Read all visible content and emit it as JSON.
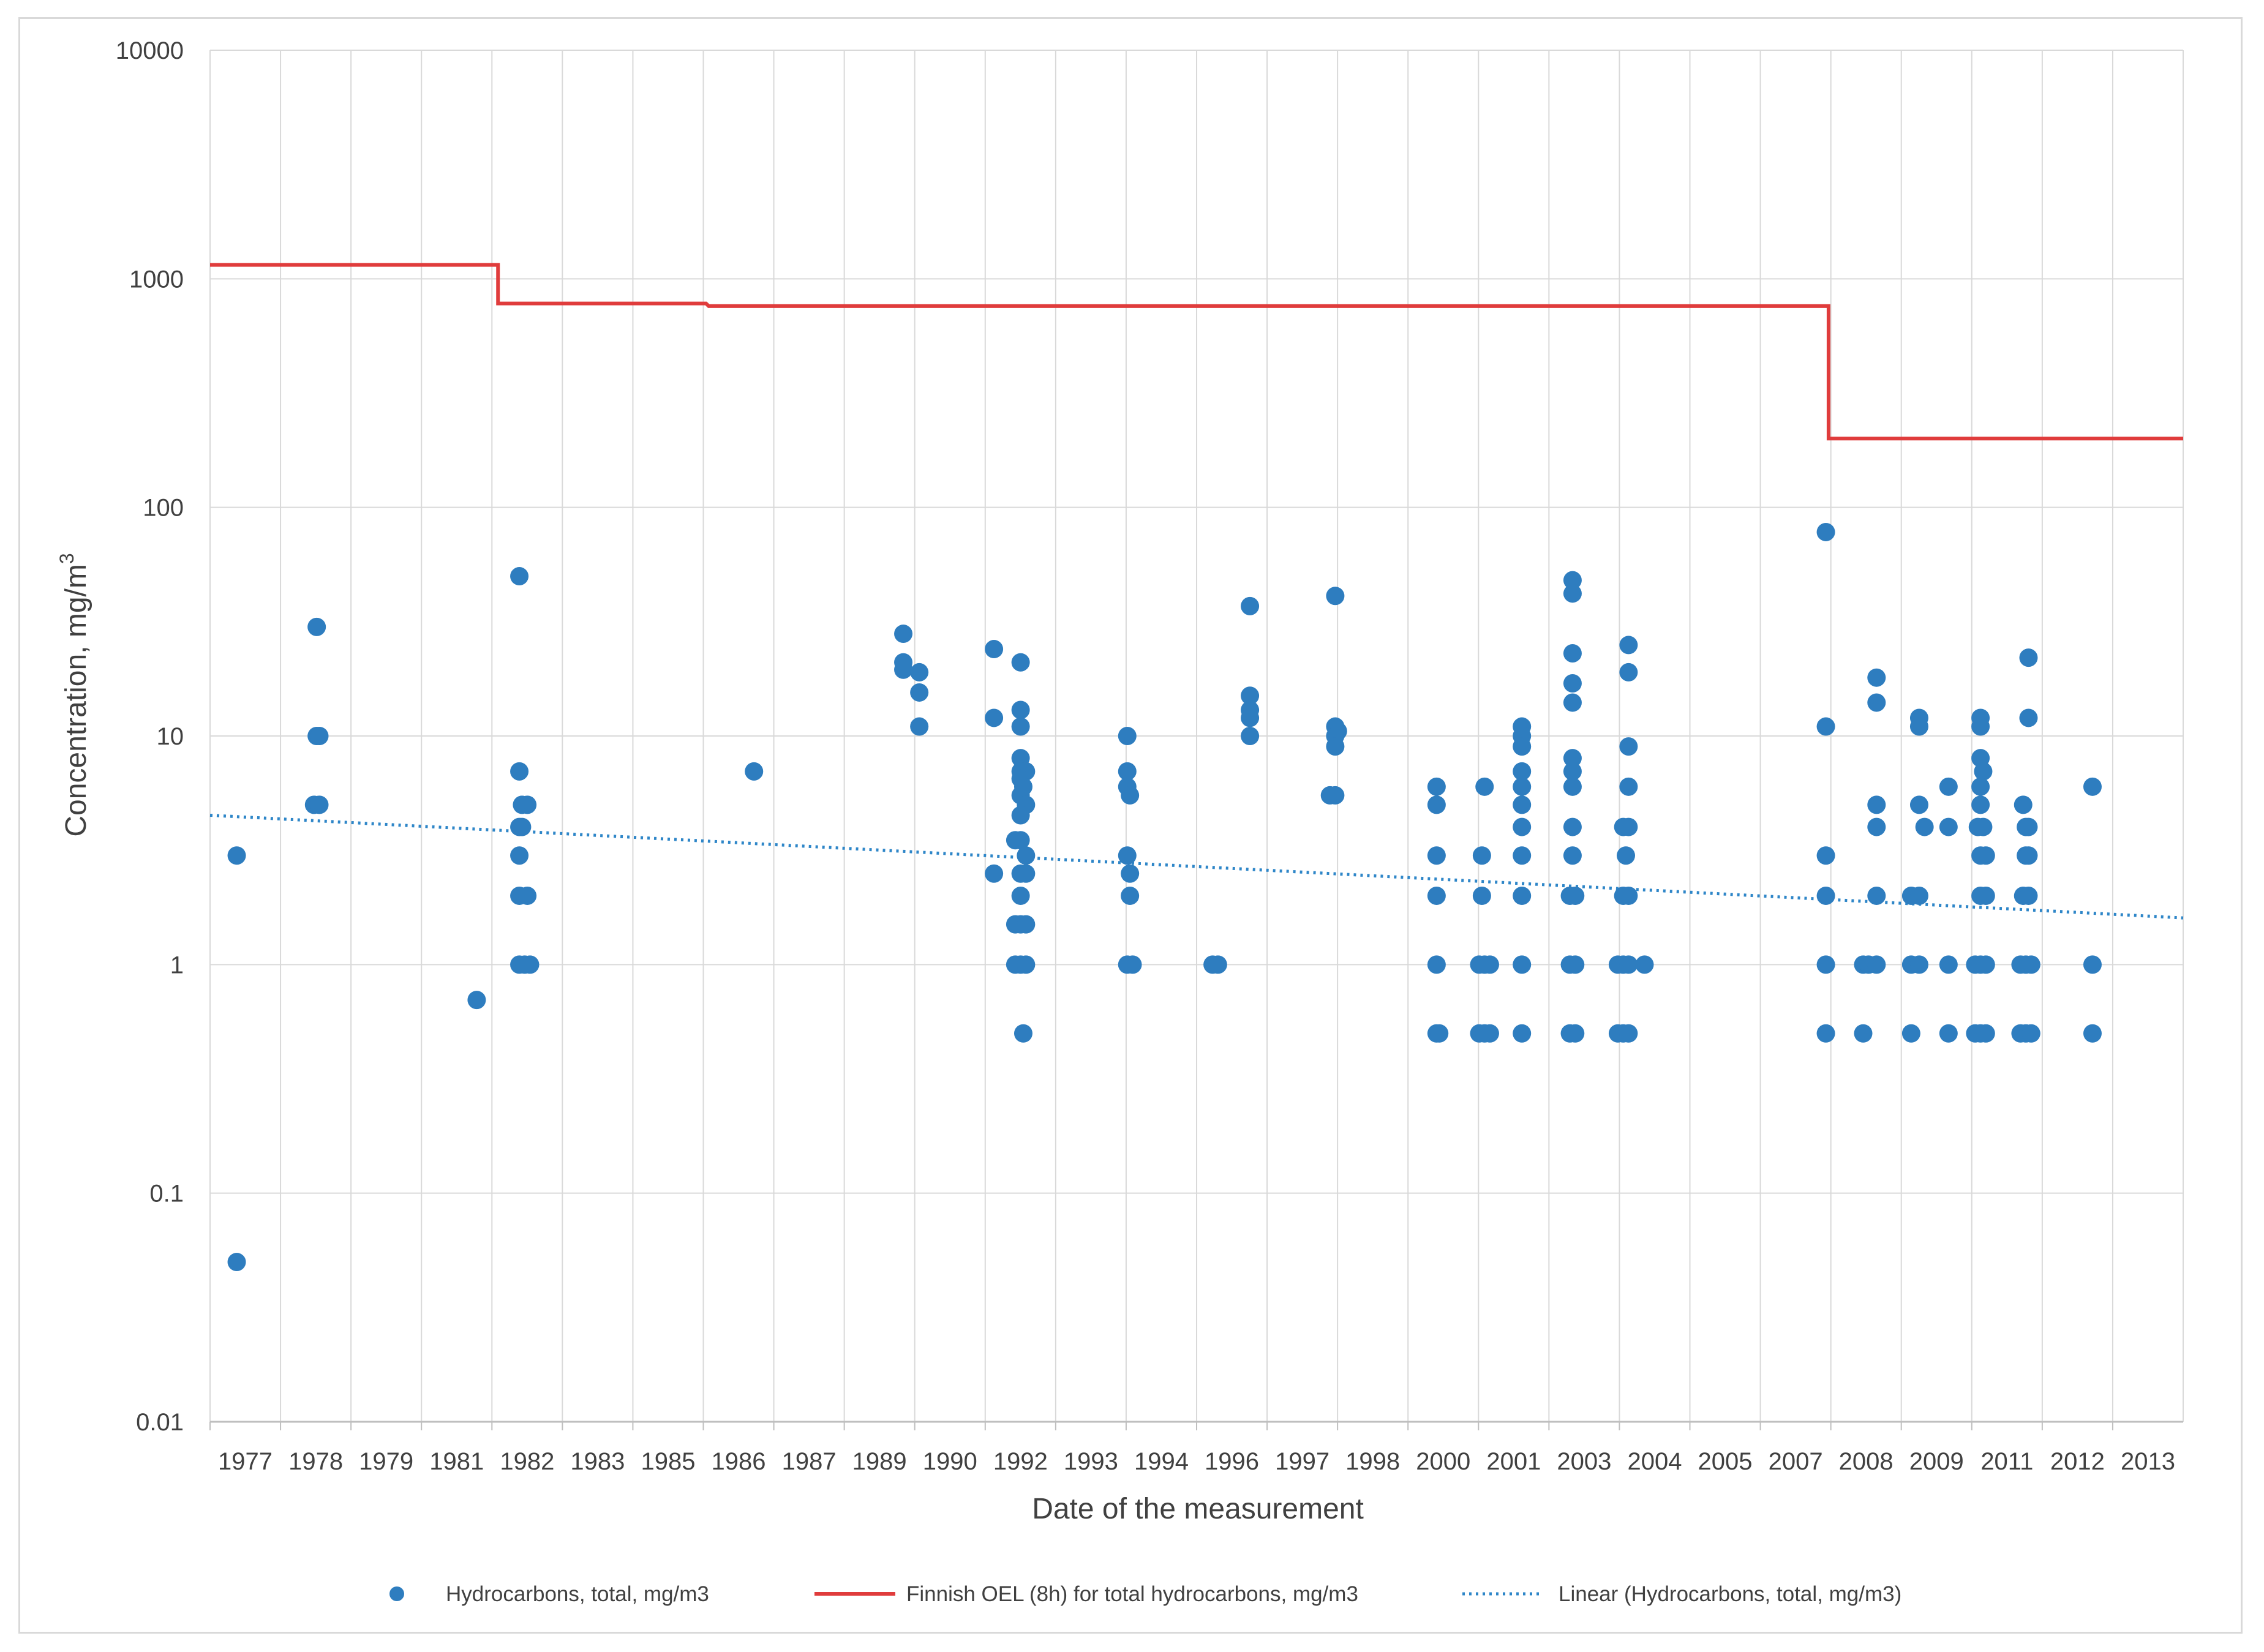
{
  "chart_data": {
    "type": "scatter",
    "title": "",
    "xlabel": "Date of the measurement",
    "ylabel": "Concentration, mg/m",
    "ylabel_superscript": "3",
    "yscale": "log",
    "ylim": [
      0.01,
      10000
    ],
    "xlim": [
      1977,
      2014
    ],
    "yticks": [
      "10000",
      "1000",
      "100",
      "10",
      "1",
      "0.1",
      "0.01"
    ],
    "xtick_labels": [
      "1977",
      "1978",
      "1979",
      "1981",
      "1982",
      "1983",
      "1985",
      "1986",
      "1987",
      "1989",
      "1990",
      "1992",
      "1993",
      "1994",
      "1996",
      "1997",
      "1998",
      "2000",
      "2001",
      "2003",
      "2004",
      "2005",
      "2007",
      "2008",
      "2009",
      "2011",
      "2012",
      "2013"
    ],
    "grid": true,
    "legend_position": "bottom",
    "colors": {
      "scatter": "#2e7dbf",
      "oel": "#e03c3c",
      "trend": "#2e86c8",
      "grid": "#d9d9d9",
      "axis": "#bfbfbf"
    },
    "series": [
      {
        "name": "Hydrocarbons, total, mg/m3",
        "kind": "scatter",
        "points": [
          [
            1977.5,
            3
          ],
          [
            1977.5,
            0.05
          ],
          [
            1979.0,
            30
          ],
          [
            1979.0,
            10
          ],
          [
            1979.05,
            10
          ],
          [
            1978.95,
            5
          ],
          [
            1979.05,
            5
          ],
          [
            1982.0,
            0.7
          ],
          [
            1982.8,
            50
          ],
          [
            1982.8,
            7
          ],
          [
            1982.85,
            5
          ],
          [
            1982.95,
            5
          ],
          [
            1982.8,
            4
          ],
          [
            1982.85,
            4
          ],
          [
            1982.8,
            3
          ],
          [
            1982.8,
            2
          ],
          [
            1982.95,
            2
          ],
          [
            1982.8,
            1
          ],
          [
            1982.9,
            1
          ],
          [
            1983.0,
            1
          ],
          [
            1987.2,
            7
          ],
          [
            1990.0,
            28
          ],
          [
            1990.0,
            21
          ],
          [
            1990.0,
            19.5
          ],
          [
            1990.3,
            19
          ],
          [
            1990.3,
            15.5
          ],
          [
            1990.3,
            11
          ],
          [
            1991.7,
            24
          ],
          [
            1991.7,
            12
          ],
          [
            1991.7,
            2.5
          ],
          [
            1992.2,
            21
          ],
          [
            1992.2,
            13
          ],
          [
            1992.2,
            11
          ],
          [
            1992.2,
            8
          ],
          [
            1992.2,
            7
          ],
          [
            1992.3,
            7
          ],
          [
            1992.2,
            6.5
          ],
          [
            1992.25,
            6
          ],
          [
            1992.2,
            5.5
          ],
          [
            1992.3,
            5
          ],
          [
            1992.2,
            4.5
          ],
          [
            1992.1,
            3.5
          ],
          [
            1992.2,
            3.5
          ],
          [
            1992.3,
            3
          ],
          [
            1992.2,
            2.5
          ],
          [
            1992.3,
            2.5
          ],
          [
            1992.2,
            2
          ],
          [
            1992.1,
            1.5
          ],
          [
            1992.2,
            1.5
          ],
          [
            1992.3,
            1.5
          ],
          [
            1992.1,
            1
          ],
          [
            1992.2,
            1
          ],
          [
            1992.3,
            1
          ],
          [
            1992.25,
            0.5
          ],
          [
            1994.2,
            10
          ],
          [
            1994.2,
            7
          ],
          [
            1994.2,
            6
          ],
          [
            1994.25,
            5.5
          ],
          [
            1994.2,
            3
          ],
          [
            1994.25,
            2.5
          ],
          [
            1994.25,
            2
          ],
          [
            1994.2,
            1
          ],
          [
            1994.3,
            1
          ],
          [
            1995.8,
            1
          ],
          [
            1995.9,
            1
          ],
          [
            1996.5,
            37
          ],
          [
            1996.5,
            15
          ],
          [
            1996.5,
            13
          ],
          [
            1996.5,
            12
          ],
          [
            1996.5,
            10
          ],
          [
            1998.1,
            41
          ],
          [
            1998.1,
            11
          ],
          [
            1998.15,
            10.5
          ],
          [
            1998.1,
            10
          ],
          [
            1998.1,
            9
          ],
          [
            1998.0,
            5.5
          ],
          [
            1998.1,
            5.5
          ],
          [
            2000.0,
            6
          ],
          [
            2000.0,
            5
          ],
          [
            2000.0,
            3
          ],
          [
            2000.0,
            2
          ],
          [
            2000.0,
            1
          ],
          [
            2000.0,
            0.5
          ],
          [
            2000.05,
            0.5
          ],
          [
            2000.9,
            6
          ],
          [
            2000.85,
            3
          ],
          [
            2000.85,
            2
          ],
          [
            2000.8,
            1
          ],
          [
            2000.9,
            1
          ],
          [
            2001.0,
            1
          ],
          [
            2000.8,
            0.5
          ],
          [
            2000.9,
            0.5
          ],
          [
            2001.0,
            0.5
          ],
          [
            2001.6,
            11
          ],
          [
            2001.6,
            10
          ],
          [
            2001.6,
            9
          ],
          [
            2001.6,
            7
          ],
          [
            2001.6,
            6
          ],
          [
            2001.6,
            5
          ],
          [
            2001.6,
            4
          ],
          [
            2001.6,
            3
          ],
          [
            2001.6,
            2
          ],
          [
            2001.6,
            1
          ],
          [
            2001.6,
            0.5
          ],
          [
            2002.55,
            48
          ],
          [
            2002.55,
            42
          ],
          [
            2002.55,
            23
          ],
          [
            2002.55,
            17
          ],
          [
            2002.55,
            14
          ],
          [
            2002.55,
            8
          ],
          [
            2002.55,
            7
          ],
          [
            2002.55,
            6
          ],
          [
            2002.55,
            4
          ],
          [
            2002.55,
            3
          ],
          [
            2002.5,
            2
          ],
          [
            2002.6,
            2
          ],
          [
            2002.5,
            1
          ],
          [
            2002.6,
            1
          ],
          [
            2002.5,
            0.5
          ],
          [
            2002.6,
            0.5
          ],
          [
            2003.6,
            25
          ],
          [
            2003.6,
            19
          ],
          [
            2003.6,
            9
          ],
          [
            2003.6,
            6
          ],
          [
            2003.5,
            4
          ],
          [
            2003.6,
            4
          ],
          [
            2003.55,
            3
          ],
          [
            2003.5,
            2
          ],
          [
            2003.6,
            2
          ],
          [
            2003.4,
            1
          ],
          [
            2003.5,
            1
          ],
          [
            2003.6,
            1
          ],
          [
            2003.9,
            1
          ],
          [
            2003.4,
            0.5
          ],
          [
            2003.5,
            0.5
          ],
          [
            2003.6,
            0.5
          ],
          [
            2007.3,
            78
          ],
          [
            2007.3,
            11
          ],
          [
            2007.3,
            3
          ],
          [
            2007.3,
            2
          ],
          [
            2007.3,
            1
          ],
          [
            2007.3,
            0.5
          ],
          [
            2008.0,
            1
          ],
          [
            2008.1,
            1
          ],
          [
            2008.0,
            0.5
          ],
          [
            2008.25,
            18
          ],
          [
            2008.25,
            14
          ],
          [
            2008.25,
            5
          ],
          [
            2008.25,
            4
          ],
          [
            2008.25,
            2
          ],
          [
            2008.25,
            1
          ],
          [
            2008.9,
            2
          ],
          [
            2008.9,
            1
          ],
          [
            2008.9,
            0.5
          ],
          [
            2009.05,
            12
          ],
          [
            2009.05,
            11
          ],
          [
            2009.05,
            5
          ],
          [
            2009.05,
            2
          ],
          [
            2009.05,
            1
          ],
          [
            2009.15,
            4
          ],
          [
            2009.6,
            6
          ],
          [
            2009.6,
            4
          ],
          [
            2009.6,
            1
          ],
          [
            2009.6,
            0.5
          ],
          [
            2010.2,
            12
          ],
          [
            2010.2,
            11
          ],
          [
            2010.2,
            8
          ],
          [
            2010.25,
            7
          ],
          [
            2010.2,
            6
          ],
          [
            2010.2,
            5
          ],
          [
            2010.15,
            4
          ],
          [
            2010.25,
            4
          ],
          [
            2010.2,
            3
          ],
          [
            2010.3,
            3
          ],
          [
            2010.2,
            2
          ],
          [
            2010.3,
            2
          ],
          [
            2010.1,
            1
          ],
          [
            2010.2,
            1
          ],
          [
            2010.3,
            1
          ],
          [
            2010.1,
            0.5
          ],
          [
            2010.2,
            0.5
          ],
          [
            2010.3,
            0.5
          ],
          [
            2011.1,
            22
          ],
          [
            2011.1,
            12
          ],
          [
            2011.0,
            5
          ],
          [
            2011.05,
            4
          ],
          [
            2011.1,
            4
          ],
          [
            2011.05,
            3
          ],
          [
            2011.1,
            3
          ],
          [
            2011.0,
            2
          ],
          [
            2011.1,
            2
          ],
          [
            2010.95,
            1
          ],
          [
            2011.05,
            1
          ],
          [
            2011.15,
            1
          ],
          [
            2010.95,
            0.5
          ],
          [
            2011.05,
            0.5
          ],
          [
            2011.15,
            0.5
          ],
          [
            2012.3,
            6
          ],
          [
            2012.3,
            1
          ],
          [
            2012.3,
            0.5
          ]
        ]
      },
      {
        "name": "Finnish OEL (8h) for total hydrocarbons, mg/m3",
        "kind": "step",
        "points": [
          [
            1977.0,
            1150
          ],
          [
            1982.4,
            1150
          ],
          [
            1982.4,
            780
          ],
          [
            1986.3,
            780
          ],
          [
            1986.35,
            760
          ],
          [
            2007.35,
            760
          ],
          [
            2007.35,
            200
          ],
          [
            2014.0,
            200
          ]
        ]
      },
      {
        "name": "Linear (Hydrocarbons, total, mg/m3)",
        "kind": "trend",
        "points": [
          [
            1977.0,
            4.5
          ],
          [
            2014.0,
            1.6
          ]
        ]
      }
    ]
  }
}
